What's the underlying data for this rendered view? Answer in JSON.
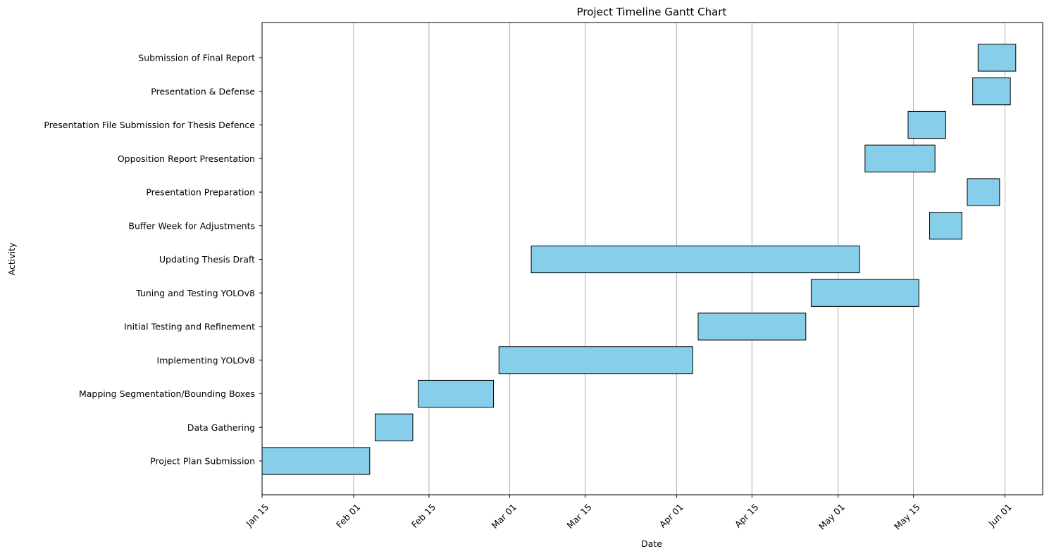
{
  "chart_data": {
    "type": "bar",
    "orientation": "horizontal",
    "title": "Project Timeline Gantt Chart",
    "xlabel": "Date",
    "ylabel": "Activity",
    "xlim": [
      "2024-01-15",
      "2024-06-08"
    ],
    "x_ticks": [
      {
        "date": "2024-01-15",
        "label": "Jan 15"
      },
      {
        "date": "2024-02-01",
        "label": "Feb 01"
      },
      {
        "date": "2024-02-15",
        "label": "Feb 15"
      },
      {
        "date": "2024-03-01",
        "label": "Mar 01"
      },
      {
        "date": "2024-03-15",
        "label": "Mar 15"
      },
      {
        "date": "2024-04-01",
        "label": "Apr 01"
      },
      {
        "date": "2024-04-15",
        "label": "Apr 15"
      },
      {
        "date": "2024-05-01",
        "label": "May 01"
      },
      {
        "date": "2024-05-15",
        "label": "May 15"
      },
      {
        "date": "2024-06-01",
        "label": "Jun 01"
      }
    ],
    "grid": "vertical",
    "bar_color": "#87CEEB",
    "edge_color": "#000000",
    "tasks": [
      {
        "name": "Project Plan Submission",
        "start": "2024-01-15",
        "end": "2024-02-04"
      },
      {
        "name": "Data Gathering",
        "start": "2024-02-05",
        "end": "2024-02-12"
      },
      {
        "name": "Mapping Segmentation/Bounding Boxes",
        "start": "2024-02-13",
        "end": "2024-02-27"
      },
      {
        "name": "Implementing YOLOv8",
        "start": "2024-02-28",
        "end": "2024-04-04"
      },
      {
        "name": "Initial Testing and Refinement",
        "start": "2024-04-05",
        "end": "2024-04-25"
      },
      {
        "name": "Tuning and Testing YOLOv8",
        "start": "2024-04-26",
        "end": "2024-05-16"
      },
      {
        "name": "Updating Thesis Draft",
        "start": "2024-03-05",
        "end": "2024-05-05"
      },
      {
        "name": "Buffer Week for Adjustments",
        "start": "2024-05-18",
        "end": "2024-05-24"
      },
      {
        "name": "Presentation Preparation",
        "start": "2024-05-25",
        "end": "2024-05-31"
      },
      {
        "name": "Opposition Report Presentation",
        "start": "2024-05-06",
        "end": "2024-05-19"
      },
      {
        "name": "Presentation File Submission for Thesis Defence",
        "start": "2024-05-14",
        "end": "2024-05-21"
      },
      {
        "name": "Presentation & Defense",
        "start": "2024-05-26",
        "end": "2024-06-02"
      },
      {
        "name": "Submission of Final Report",
        "start": "2024-05-27",
        "end": "2024-06-03"
      }
    ]
  }
}
